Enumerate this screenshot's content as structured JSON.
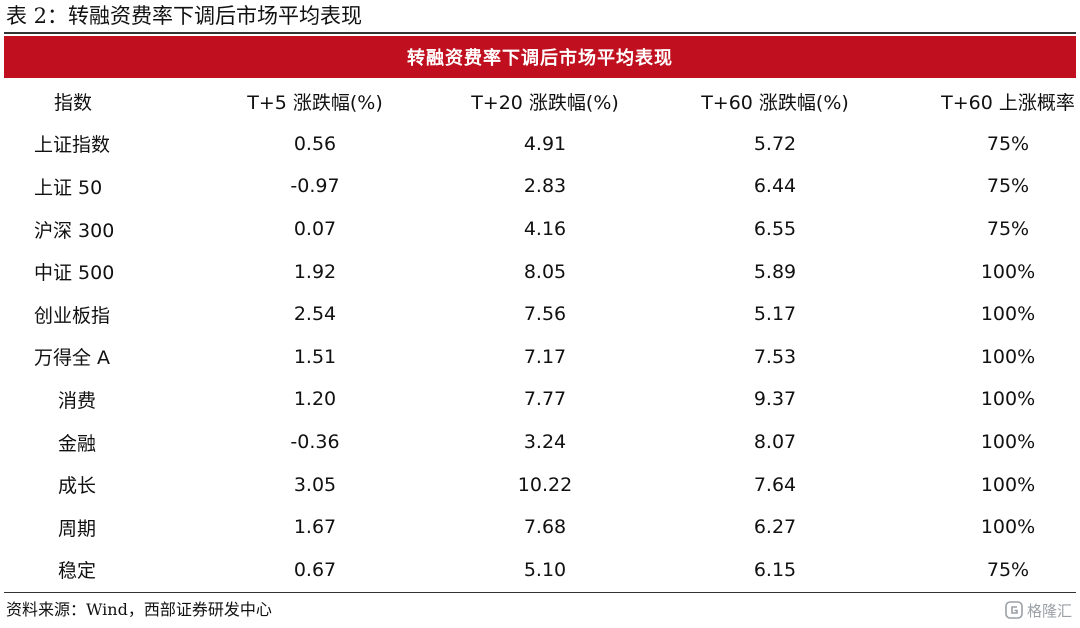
{
  "caption": "表 2：转融资费率下调后市场平均表现",
  "banner_title": "转融资费率下调后市场平均表现",
  "colors": {
    "banner": "#c00f1e",
    "text": "#111111",
    "watermark": "#9aa0a6"
  },
  "table": {
    "headers": [
      "指数",
      "T+5 涨跌幅(%)",
      "T+20 涨跌幅(%)",
      "T+60 涨跌幅(%)",
      "T+60 上涨概率"
    ],
    "rows": [
      [
        "上证指数",
        "0.56",
        "4.91",
        "5.72",
        "75%"
      ],
      [
        "上证 50",
        "-0.97",
        "2.83",
        "6.44",
        "75%"
      ],
      [
        "沪深 300",
        "0.07",
        "4.16",
        "6.55",
        "75%"
      ],
      [
        "中证 500",
        "1.92",
        "8.05",
        "5.89",
        "100%"
      ],
      [
        "创业板指",
        "2.54",
        "7.56",
        "5.17",
        "100%"
      ],
      [
        "万得全 A",
        "1.51",
        "7.17",
        "7.53",
        "100%"
      ],
      [
        "消费",
        "1.20",
        "7.77",
        "9.37",
        "100%"
      ],
      [
        "金融",
        "-0.36",
        "3.24",
        "8.07",
        "100%"
      ],
      [
        "成长",
        "3.05",
        "10.22",
        "7.64",
        "100%"
      ],
      [
        "周期",
        "1.67",
        "7.68",
        "6.27",
        "100%"
      ],
      [
        "稳定",
        "0.67",
        "5.10",
        "6.15",
        "75%"
      ]
    ]
  },
  "source": "资料来源：Wind，西部证券研发中心",
  "watermark": {
    "icon": "watermark-logo-icon",
    "text": "格隆汇"
  }
}
